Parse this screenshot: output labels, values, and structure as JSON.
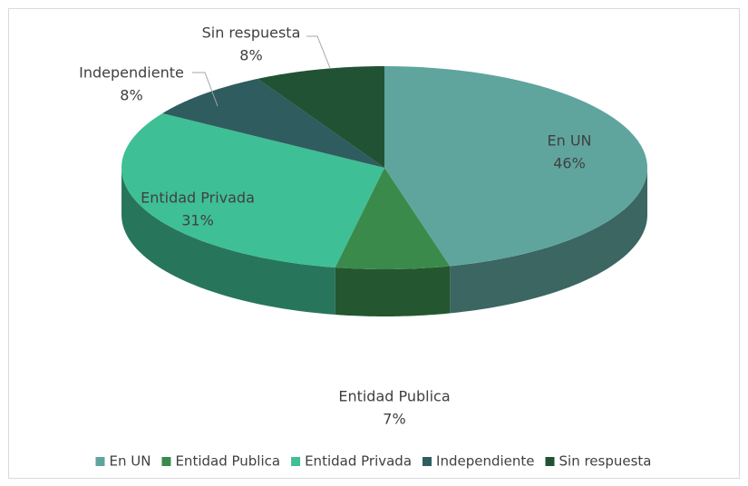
{
  "chart_data": {
    "type": "pie3d",
    "categories": [
      "En UN",
      "Entidad Publica",
      "Entidad Privada",
      "Independiente",
      "Sin respuesta"
    ],
    "values": [
      46,
      7,
      31,
      8,
      8
    ],
    "value_labels": [
      "46%",
      "7%",
      "31%",
      "8%",
      "8%"
    ],
    "colors": [
      "#5fa59e",
      "#3a8a4c",
      "#3fbf95",
      "#2f5c5e",
      "#215234"
    ],
    "legend": "bottom"
  }
}
